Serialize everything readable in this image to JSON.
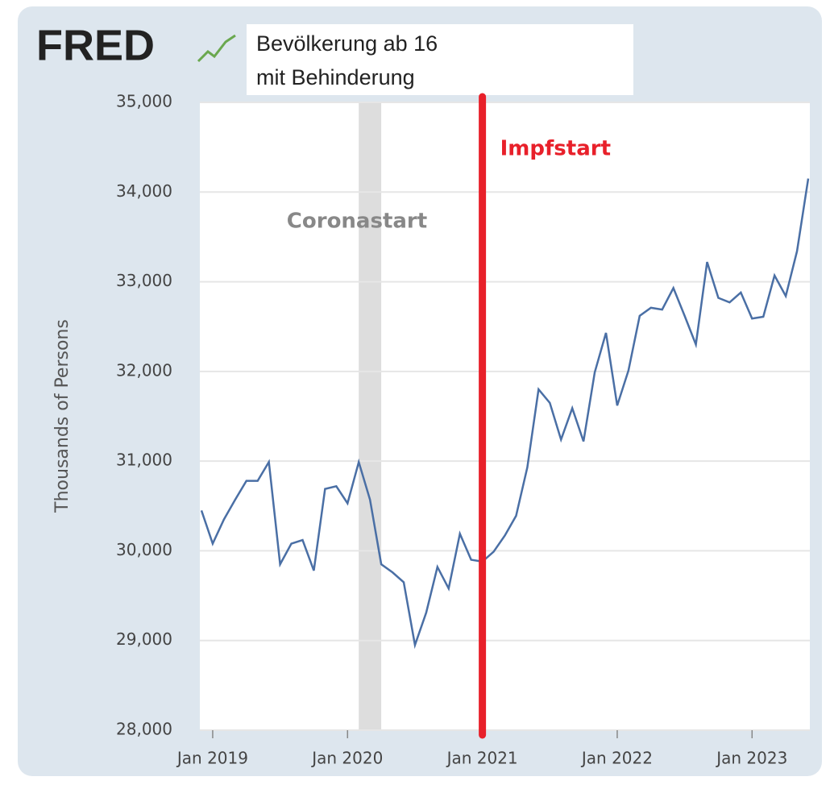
{
  "chart_data": {
    "type": "line",
    "logo": "FRED",
    "title_lines": [
      "Bevölkerung ab 16",
      "mit Behinderung"
    ],
    "y_label": "Thousands of Persons",
    "x": [
      "2018-12",
      "2019-01",
      "2019-02",
      "2019-03",
      "2019-04",
      "2019-05",
      "2019-06",
      "2019-07",
      "2019-08",
      "2019-09",
      "2019-10",
      "2019-11",
      "2019-12",
      "2020-01",
      "2020-02",
      "2020-03",
      "2020-04",
      "2020-05",
      "2020-06",
      "2020-07",
      "2020-08",
      "2020-09",
      "2020-10",
      "2020-11",
      "2020-12",
      "2021-01",
      "2021-02",
      "2021-03",
      "2021-04",
      "2021-05",
      "2021-06",
      "2021-07",
      "2021-08",
      "2021-09",
      "2021-10",
      "2021-11",
      "2021-12",
      "2022-01",
      "2022-02",
      "2022-03",
      "2022-04",
      "2022-05",
      "2022-06",
      "2022-07",
      "2022-08",
      "2022-09",
      "2022-10",
      "2022-11",
      "2022-12",
      "2023-01",
      "2023-02",
      "2023-03",
      "2023-04",
      "2023-05",
      "2023-06"
    ],
    "series": [
      {
        "color": "#4a6fa5",
        "values": [
          30450,
          30080,
          30350,
          30570,
          30780,
          30780,
          30990,
          29850,
          30080,
          30120,
          29780,
          30690,
          30720,
          30530,
          30990,
          30570,
          29850,
          29760,
          29650,
          28950,
          29310,
          29820,
          29580,
          30190,
          29900,
          29880,
          29990,
          30170,
          30390,
          30930,
          31800,
          31650,
          31240,
          31590,
          31220,
          31990,
          32430,
          31620,
          32010,
          32620,
          32710,
          32690,
          32930,
          32620,
          32300,
          33220,
          32820,
          32770,
          32880,
          32590,
          32610,
          33070,
          32840,
          33340,
          34150
        ]
      }
    ],
    "xlim": [
      "2018-12",
      "2023-06"
    ],
    "xticks": [
      {
        "value": "2019-01",
        "label": "Jan 2019"
      },
      {
        "value": "2020-01",
        "label": "Jan 2020"
      },
      {
        "value": "2021-01",
        "label": "Jan 2021"
      },
      {
        "value": "2022-01",
        "label": "Jan 2022"
      },
      {
        "value": "2023-01",
        "label": "Jan 2023"
      }
    ],
    "ylim": [
      28000,
      35000
    ],
    "yticks": [
      {
        "value": 28000,
        "label": "28,000"
      },
      {
        "value": 29000,
        "label": "29,000"
      },
      {
        "value": 30000,
        "label": "30,000"
      },
      {
        "value": 31000,
        "label": "31,000"
      },
      {
        "value": 32000,
        "label": "32,000"
      },
      {
        "value": 33000,
        "label": "33,000"
      },
      {
        "value": 34000,
        "label": "34,000"
      },
      {
        "value": 35000,
        "label": "35,000"
      }
    ],
    "grid": true,
    "annotations": [
      {
        "text": "Coronastart",
        "x": [
          "2020-02",
          "2020-04"
        ],
        "color": "#dddddd",
        "text_color": "#888888"
      },
      {
        "text": "Impfstart",
        "x": "2021-01",
        "color": "#e8202a",
        "text_color": "#e8202a"
      }
    ]
  }
}
